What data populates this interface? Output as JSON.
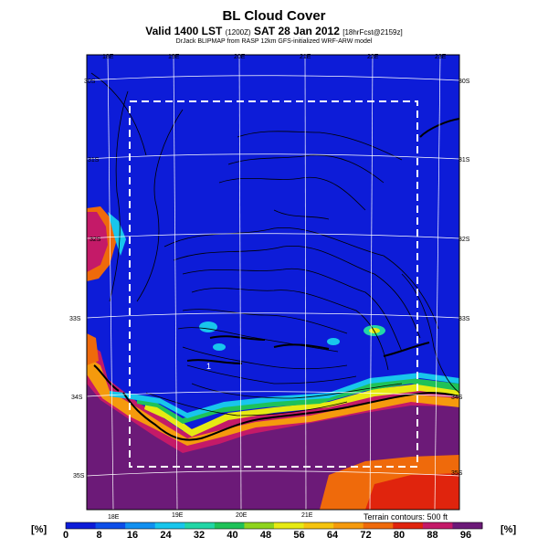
{
  "header": {
    "title": "BL Cloud Cover",
    "subtitle_main": "Valid 1400 LST",
    "subtitle_code": "(1200Z)",
    "subtitle_date": "SAT 28 Jan 2012",
    "subtitle_run": "[18hrFcst@2159z]",
    "credit": "DrJack BLIPMAP from RASP 12km GFS-initialized WRF-ARW model"
  },
  "map": {
    "top_lon_labels": [
      "18E",
      "19E",
      "20E",
      "21E",
      "22E",
      "23E"
    ],
    "bottom_lon_labels": [
      "18E",
      "19E",
      "20E",
      "21E"
    ],
    "right_lat_labels": [
      "30S",
      "31S",
      "32S",
      "33S",
      "34S",
      "35S"
    ],
    "left_lat_labels": [
      "30S",
      "31S",
      "32S",
      "33S",
      "34S",
      "35S"
    ],
    "terrain_note": "Terrain contours: 500 ft",
    "contour_label": "1"
  },
  "colorbar": {
    "unit_left": "[%]",
    "unit_right": "[%]",
    "labels": [
      "0",
      "8",
      "16",
      "24",
      "32",
      "40",
      "48",
      "56",
      "64",
      "72",
      "80",
      "88",
      "96"
    ],
    "colors": [
      "#0d1cd8",
      "#0d4ee8",
      "#1190f0",
      "#18c6ec",
      "#22d6a6",
      "#1fc258",
      "#8ed41d",
      "#e6ea13",
      "#f5c40f",
      "#f59a0d",
      "#ef6a0b",
      "#e0240d",
      "#c41a68",
      "#6c1a78"
    ]
  }
}
